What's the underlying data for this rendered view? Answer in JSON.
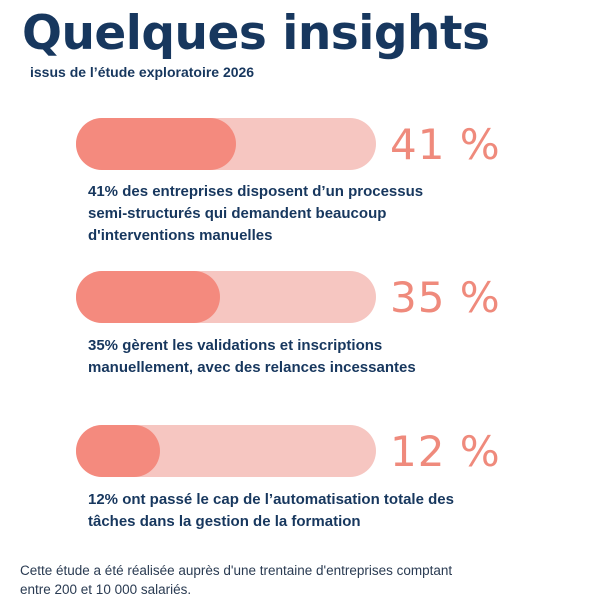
{
  "title": "Quelques insights",
  "subtitle": "issus de l’étude exploratoire 2026",
  "colors": {
    "track": "#f6c6c1",
    "fill": "#f48a7e",
    "percent_text": "#ef8a7c",
    "text": "#17375e"
  },
  "chart_data": {
    "type": "bar",
    "orientation": "horizontal",
    "xlim": [
      0,
      100
    ],
    "categories": [
      "41%  des entreprises disposent d’un processus semi-structurés qui demandent beaucoup d'interventions manuelles",
      "35% gèrent les validations et inscriptions manuellement, avec des relances incessantes",
      "12% ont passé le cap de l’automatisation totale des tâches dans la gestion de la formation"
    ],
    "values": [
      41,
      35,
      12
    ],
    "value_labels": [
      "41 %",
      "35 %",
      "12 %"
    ]
  },
  "insights": [
    {
      "value": 41,
      "label": "41 %",
      "lines": [
        "41%  des entreprises disposent d’un processus",
        "semi-structurés qui demandent beaucoup",
        "d'interventions manuelles"
      ]
    },
    {
      "value": 35,
      "label": "35 %",
      "lines": [
        "35% gèrent les validations et inscriptions",
        "manuellement, avec des relances incessantes"
      ]
    },
    {
      "value": 12,
      "label": "12 %",
      "lines": [
        "12% ont passé le cap de l’automatisation totale des",
        "tâches dans la gestion de la formation"
      ]
    }
  ],
  "footnote": [
    "Cette étude a été réalisée auprès d'une trentaine d'entreprises comptant",
    "entre 200 et 10 000 salariés."
  ]
}
